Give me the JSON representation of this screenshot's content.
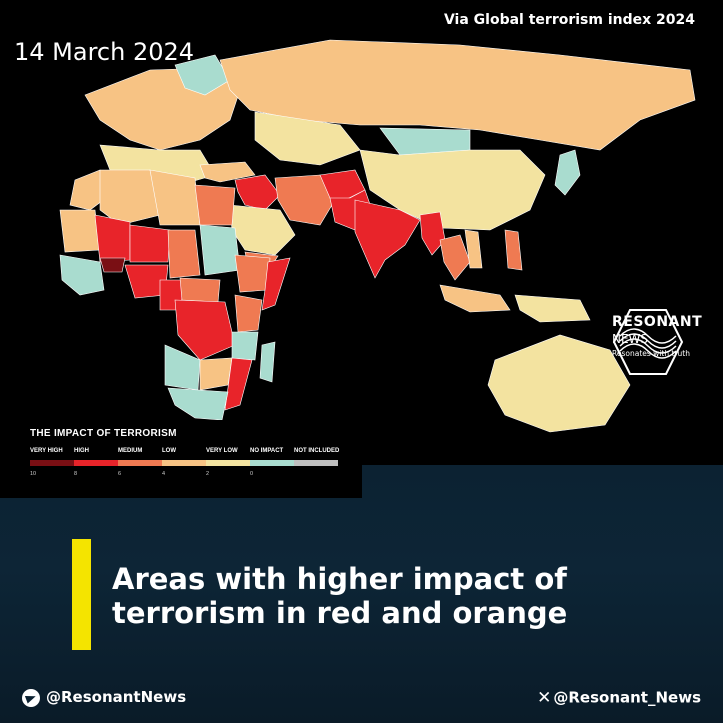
{
  "header": {
    "date": "14 March 2024",
    "source": "Via Global terrorism index 2024"
  },
  "map": {
    "regions": [
      {
        "name": "India",
        "impact": "high"
      },
      {
        "name": "Pakistan",
        "impact": "high"
      },
      {
        "name": "Afghanistan",
        "impact": "high"
      },
      {
        "name": "Iraq",
        "impact": "high"
      },
      {
        "name": "Syria",
        "impact": "high"
      },
      {
        "name": "Myanmar",
        "impact": "high"
      },
      {
        "name": "Mali",
        "impact": "high"
      },
      {
        "name": "Burkina Faso",
        "impact": "very high"
      },
      {
        "name": "Niger",
        "impact": "high"
      },
      {
        "name": "Nigeria",
        "impact": "high"
      },
      {
        "name": "Somalia",
        "impact": "high"
      },
      {
        "name": "DR Congo",
        "impact": "high"
      },
      {
        "name": "Mozambique",
        "impact": "high"
      },
      {
        "name": "Iran",
        "impact": "medium"
      },
      {
        "name": "Egypt",
        "impact": "medium"
      },
      {
        "name": "Russia",
        "impact": "low"
      },
      {
        "name": "China",
        "impact": "very low"
      }
    ]
  },
  "legend": {
    "title": "THE IMPACT OF TERRORISM",
    "levels": [
      {
        "label": "VERY HIGH",
        "value": "10",
        "color": "#7a0f14"
      },
      {
        "label": "HIGH",
        "value": "8",
        "color": "#e8242a"
      },
      {
        "label": "MEDIUM",
        "value": "6",
        "color": "#ef7a52"
      },
      {
        "label": "LOW",
        "value": "4",
        "color": "#f7c384"
      },
      {
        "label": "VERY LOW",
        "value": "2",
        "color": "#f3e3a0"
      },
      {
        "label": "NO IMPACT",
        "value": "0",
        "color": "#a9dccf"
      },
      {
        "label": "NOT INCLUDED",
        "value": "",
        "color": "#bfbfbf"
      }
    ]
  },
  "brand": {
    "name": "RESONANT",
    "sub": "NEWS",
    "tagline": "Resonates with truth"
  },
  "headline": "Areas with higher impact of terrorism in red and orange",
  "social": {
    "telegram": "@ResonantNews",
    "x": "@Resonant_News"
  },
  "colors": {
    "accent": "#f4e400",
    "background_bottom": "#0c2232"
  }
}
